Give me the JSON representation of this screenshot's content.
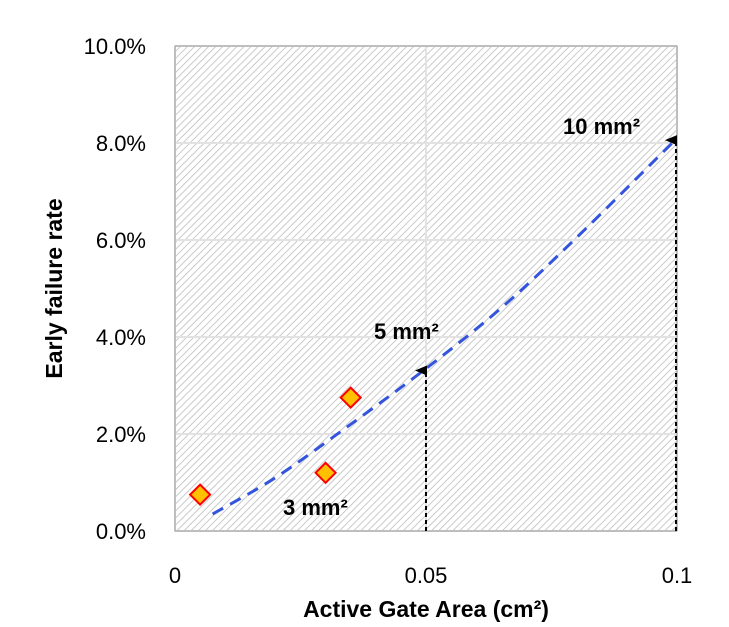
{
  "chart_data": {
    "type": "scatter",
    "xlabel": "Active Gate Area (cm²)",
    "ylabel": "Early failure rate",
    "xlim": [
      0,
      0.1
    ],
    "ylim": [
      0,
      0.1
    ],
    "x_ticks": [
      "0",
      "0.05",
      "0.1"
    ],
    "y_ticks": [
      "0.0%",
      "2.0%",
      "4.0%",
      "6.0%",
      "8.0%",
      "10.0%"
    ],
    "grid": true,
    "series": [
      {
        "marker": "diamond",
        "color": "#FFC000",
        "edge_color": "#FF0000",
        "points": [
          {
            "x": 0.005,
            "y": 0.0075
          },
          {
            "x": 0.03,
            "y": 0.012
          },
          {
            "x": 0.035,
            "y": 0.0275
          }
        ]
      }
    ],
    "trendline": {
      "style": "dashed",
      "color": "#3355DD",
      "x_range": [
        0.0075,
        0.1
      ],
      "points": [
        {
          "x": 0.0075,
          "y": 0.0035
        },
        {
          "x": 0.02,
          "y": 0.011
        },
        {
          "x": 0.035,
          "y": 0.022
        },
        {
          "x": 0.05,
          "y": 0.0335
        },
        {
          "x": 0.065,
          "y": 0.046
        },
        {
          "x": 0.08,
          "y": 0.0605
        },
        {
          "x": 0.1,
          "y": 0.081
        }
      ]
    },
    "annotations": [
      {
        "label": "3 mm²",
        "x": 0.03
      },
      {
        "label": "5 mm²",
        "x": 0.05,
        "arrow_to_y": 0.0335
      },
      {
        "label": "10 mm²",
        "x": 0.1,
        "arrow_to_y": 0.081
      }
    ]
  }
}
